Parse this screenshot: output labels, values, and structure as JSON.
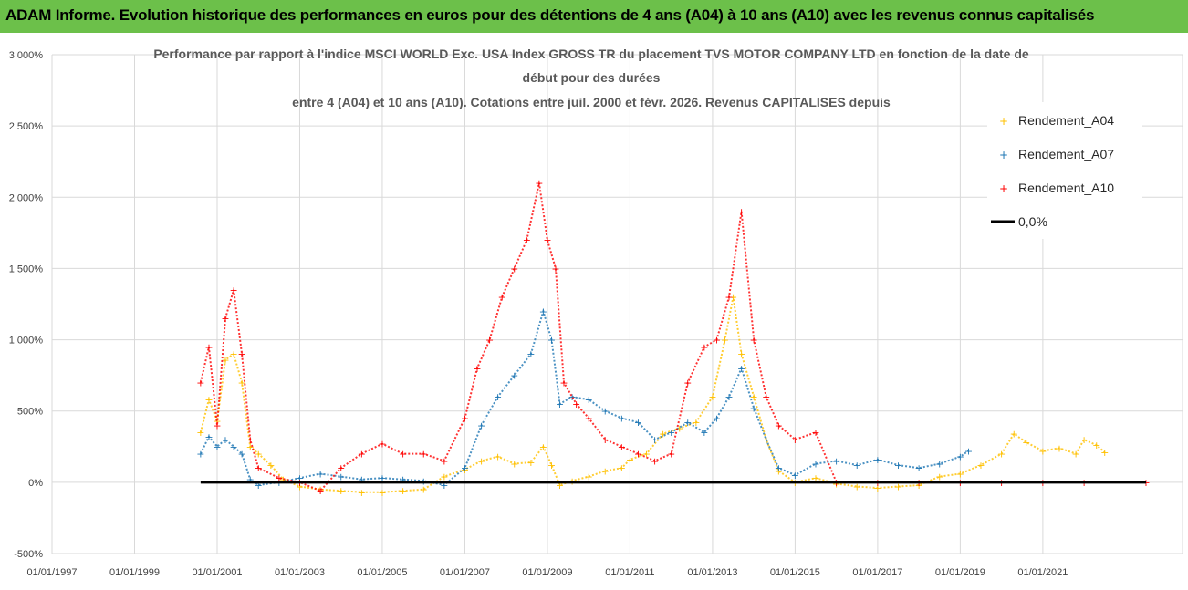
{
  "header": {
    "title": "ADAM Informe. Evolution historique des performances en euros pour des détentions de 4 ans (A04) à 10 ans (A10) avec les revenus connus capitalisés"
  },
  "colors": {
    "header_bg": "#6cc04a",
    "A04": "#ffc000",
    "A07": "#1f77b4",
    "A10": "#ff0000",
    "zero": "#000000",
    "grid": "#d9d9d9"
  },
  "chart_data": {
    "type": "scatter",
    "title_lines": [
      "Performance par rapport à l'indice MSCI WORLD Exc. USA Index GROSS TR  du placement TVS MOTOR COMPANY LTD en fonction de la date de",
      "début pour des durées",
      "entre 4 (A04) et 10 ans (A10). Cotations entre juil. 2000 et févr. 2026. Revenus CAPITALISES depuis"
    ],
    "y_ticks": [
      "3 000%",
      "2 500%",
      "2 000%",
      "1 500%",
      "1 000%",
      "500%",
      "0%",
      "-500%"
    ],
    "ylim": [
      -500,
      3000
    ],
    "x_ticks": [
      "01/01/1997",
      "01/01/1999",
      "01/01/2001",
      "01/01/2003",
      "01/01/2005",
      "01/01/2007",
      "01/01/2009",
      "01/01/2011",
      "01/01/2013",
      "01/01/2015",
      "01/01/2017",
      "01/01/2019",
      "01/01/2021"
    ],
    "xlim": [
      1997.0,
      2023.5
    ],
    "legend": [
      "Rendement_A04",
      "Rendement_A07",
      "Rendement_A10",
      "0,0%"
    ],
    "series": [
      {
        "name": "Rendement_A04",
        "x": [
          2000.6,
          2000.8,
          2001.0,
          2001.2,
          2001.4,
          2001.6,
          2001.8,
          2002.0,
          2002.3,
          2002.6,
          2003.0,
          2003.5,
          2004.0,
          2004.5,
          2005.0,
          2005.5,
          2006.0,
          2006.5,
          2007.0,
          2007.4,
          2007.8,
          2008.2,
          2008.6,
          2008.9,
          2009.1,
          2009.3,
          2009.6,
          2010.0,
          2010.4,
          2010.8,
          2011.0,
          2011.4,
          2011.8,
          2012.2,
          2012.6,
          2013.0,
          2013.3,
          2013.5,
          2013.7,
          2014.0,
          2014.3,
          2014.6,
          2015.0,
          2015.5,
          2016.0,
          2016.5,
          2017.0,
          2017.5,
          2018.0,
          2018.5,
          2019.0,
          2019.5,
          2020.0,
          2020.3,
          2020.6,
          2021.0,
          2021.4,
          2021.8,
          2022.0,
          2022.3,
          2022.5
        ],
        "y": [
          350,
          580,
          430,
          860,
          900,
          700,
          250,
          200,
          120,
          20,
          -30,
          -50,
          -60,
          -70,
          -70,
          -60,
          -50,
          40,
          90,
          150,
          180,
          130,
          140,
          250,
          120,
          -20,
          10,
          40,
          80,
          100,
          160,
          200,
          340,
          380,
          420,
          600,
          1000,
          1300,
          900,
          600,
          300,
          80,
          0,
          30,
          -10,
          -30,
          -40,
          -30,
          -20,
          40,
          60,
          120,
          200,
          340,
          280,
          220,
          240,
          200,
          300,
          260,
          210
        ]
      },
      {
        "name": "Rendement_A07",
        "x": [
          2000.6,
          2000.8,
          2001.0,
          2001.2,
          2001.4,
          2001.6,
          2001.8,
          2002.0,
          2002.5,
          2003.0,
          2003.5,
          2004.0,
          2004.5,
          2005.0,
          2005.5,
          2006.0,
          2006.5,
          2007.0,
          2007.4,
          2007.8,
          2008.2,
          2008.6,
          2008.9,
          2009.1,
          2009.3,
          2009.6,
          2010.0,
          2010.4,
          2010.8,
          2011.2,
          2011.6,
          2012.0,
          2012.4,
          2012.8,
          2013.1,
          2013.4,
          2013.7,
          2014.0,
          2014.3,
          2014.6,
          2015.0,
          2015.5,
          2016.0,
          2016.5,
          2017.0,
          2017.5,
          2018.0,
          2018.5,
          2019.0,
          2019.2
        ],
        "y": [
          200,
          320,
          250,
          300,
          250,
          200,
          20,
          -20,
          0,
          30,
          60,
          40,
          20,
          30,
          20,
          10,
          -20,
          100,
          400,
          600,
          750,
          900,
          1200,
          1000,
          550,
          600,
          580,
          500,
          450,
          420,
          300,
          350,
          420,
          350,
          450,
          600,
          800,
          520,
          300,
          100,
          50,
          130,
          150,
          120,
          160,
          120,
          100,
          130,
          180,
          220
        ]
      },
      {
        "name": "Rendement_A10",
        "x": [
          2000.6,
          2000.8,
          2001.0,
          2001.2,
          2001.4,
          2001.6,
          2001.8,
          2002.0,
          2002.5,
          2003.0,
          2003.5,
          2004.0,
          2004.5,
          2005.0,
          2005.5,
          2006.0,
          2006.5,
          2007.0,
          2007.3,
          2007.6,
          2007.9,
          2008.2,
          2008.5,
          2008.8,
          2009.0,
          2009.2,
          2009.4,
          2009.7,
          2010.0,
          2010.4,
          2010.8,
          2011.2,
          2011.6,
          2012.0,
          2012.4,
          2012.8,
          2013.1,
          2013.4,
          2013.7,
          2014.0,
          2014.3,
          2014.6,
          2015.0,
          2015.5,
          2016.0,
          2017.0,
          2018.0,
          2019.0,
          2020.0,
          2021.0,
          2022.0,
          2023.5
        ],
        "y": [
          700,
          950,
          400,
          1150,
          1350,
          900,
          300,
          100,
          30,
          0,
          -60,
          100,
          200,
          270,
          200,
          200,
          150,
          450,
          800,
          1000,
          1300,
          1500,
          1700,
          2100,
          1700,
          1500,
          700,
          550,
          450,
          300,
          250,
          200,
          150,
          200,
          700,
          950,
          1000,
          1300,
          1900,
          1000,
          600,
          400,
          300,
          350,
          0,
          0,
          0,
          0,
          0,
          0,
          0,
          0
        ]
      }
    ],
    "zero_line": {
      "x_start": 2000.6,
      "x_end": 2023.5,
      "value": 0
    }
  }
}
